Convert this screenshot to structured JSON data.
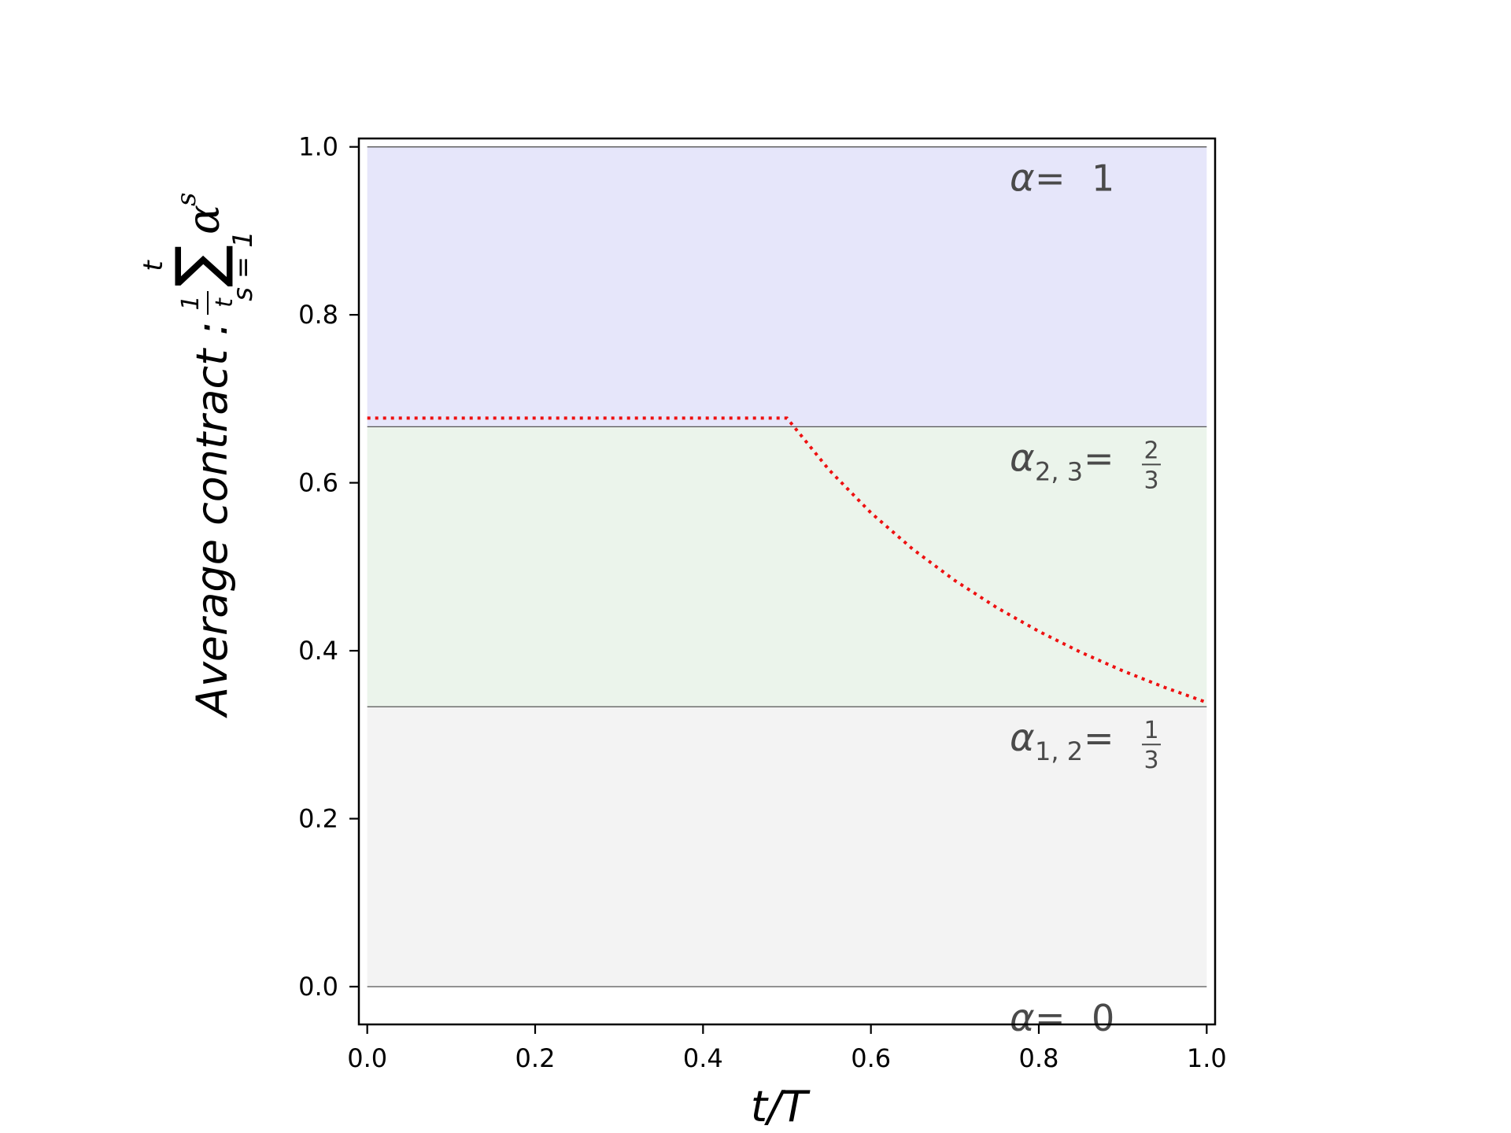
{
  "chart_data": {
    "type": "line",
    "title": "",
    "xlabel": "t/T",
    "ylabel": {
      "text": "Average contract : ",
      "fraction_numerator": "1",
      "fraction_denominator": "t",
      "sum_symbol": "∑",
      "sum_upper": "t",
      "sum_lower": "s = 1",
      "term": "α",
      "term_superscript": "s"
    },
    "xlim": [
      -0.01,
      1.01
    ],
    "ylim": [
      -0.045,
      1.01
    ],
    "x_ticks": [
      0.0,
      0.2,
      0.4,
      0.6,
      0.8,
      1.0
    ],
    "x_tick_labels": [
      "0.0",
      "0.2",
      "0.4",
      "0.6",
      "0.8",
      "1.0"
    ],
    "y_ticks": [
      0.0,
      0.2,
      0.4,
      0.6,
      0.8,
      1.0
    ],
    "y_tick_labels": [
      "0.0",
      "0.2",
      "0.4",
      "0.6",
      "0.8",
      "1.0"
    ],
    "grid": false,
    "regions": [
      {
        "y_from": 0.0,
        "y_to": 0.3333,
        "color": "#f3f3f3"
      },
      {
        "y_from": 0.3333,
        "y_to": 0.6667,
        "color": "#ebf4eb"
      },
      {
        "y_from": 0.6667,
        "y_to": 1.0,
        "color": "#e6e6fa"
      }
    ],
    "boundaries": [
      0.0,
      0.3333,
      0.6667,
      1.0
    ],
    "region_labels": [
      {
        "greek": "α",
        "subscript": "",
        "eq": " = ",
        "value": "1",
        "numerator": "",
        "denominator": "",
        "at_y": 1.0
      },
      {
        "greek": "α",
        "subscript": "2, 3",
        "eq": " = ",
        "value": "",
        "numerator": "2",
        "denominator": "3",
        "at_y": 0.6667
      },
      {
        "greek": "α",
        "subscript": "1, 2",
        "eq": " = ",
        "value": "",
        "numerator": "1",
        "denominator": "3",
        "at_y": 0.3333
      },
      {
        "greek": "α",
        "subscript": "",
        "eq": " = ",
        "value": "0",
        "numerator": "",
        "denominator": "",
        "at_y": 0.0
      }
    ],
    "series": [
      {
        "style": "dotted",
        "color": "#ee1111",
        "x": [
          0.0,
          0.1,
          0.2,
          0.3,
          0.4,
          0.5,
          0.55,
          0.6,
          0.65,
          0.7,
          0.75,
          0.8,
          0.85,
          0.9,
          0.95,
          1.0
        ],
        "values": [
          0.677,
          0.677,
          0.677,
          0.677,
          0.677,
          0.677,
          0.6155,
          0.5642,
          0.5208,
          0.4836,
          0.4513,
          0.4231,
          0.3982,
          0.3761,
          0.3563,
          0.3385
        ]
      }
    ]
  }
}
